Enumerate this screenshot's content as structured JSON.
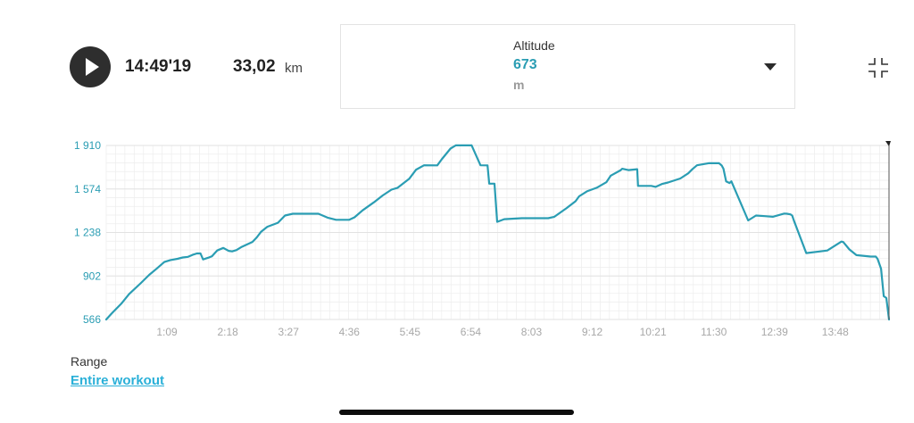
{
  "header": {
    "play_icon": "play-icon",
    "duration": "14:49'19",
    "distance": "33,02",
    "distance_unit": "km"
  },
  "metric_selector": {
    "label": "Altitude",
    "value": "673",
    "unit": "m",
    "dropdown_icon": "caret-down-icon",
    "fullscreen_icon": "collapse-icon"
  },
  "colors": {
    "line": "#2a9db3",
    "tick_text": "#2a9db3",
    "x_tick_text": "#a8a8a8",
    "grid": "#ededed",
    "link": "#2ab0d8"
  },
  "chart_data": {
    "type": "line",
    "title": "",
    "xlabel": "",
    "ylabel": "",
    "x_unit": "h:mm",
    "y_ticks": [
      "1 910",
      "1 574",
      "1 238",
      "902",
      "566"
    ],
    "y_tick_values": [
      1910,
      1574,
      1238,
      902,
      566
    ],
    "x_ticks": [
      "1:09",
      "2:18",
      "3:27",
      "4:36",
      "5:45",
      "6:54",
      "8:03",
      "9:12",
      "10:21",
      "11:30",
      "12:39",
      "13:48"
    ],
    "x_tick_values": [
      69,
      138,
      207,
      276,
      345,
      414,
      483,
      552,
      621,
      690,
      759,
      828
    ],
    "xlim": [
      0,
      889
    ],
    "ylim": [
      566,
      1910
    ],
    "grid": true,
    "series": [
      {
        "x": [
          0,
          6,
          17,
          26,
          39,
          49,
          57,
          66,
          73,
          81,
          87,
          93,
          98,
          103,
          107,
          110,
          117,
          120,
          123,
          126,
          133,
          139,
          143,
          148,
          154,
          166,
          171,
          176,
          183,
          195,
          203,
          212,
          227,
          236,
          241,
          252,
          261,
          276,
          282,
          291,
          304,
          314,
          324,
          331,
          344,
          352,
          361,
          376,
          381,
          391,
          397,
          401,
          415,
          425,
          433,
          435,
          441,
          444,
          452,
          472,
          502,
          509,
          523,
          533,
          537,
          546,
          557,
          568,
          573,
          584,
          586,
          593,
          603,
          604,
          619,
          624,
          631,
          638,
          652,
          661,
          666,
          671,
          684,
          689,
          696,
          699,
          701,
          704,
          708,
          710,
          729,
          738,
          748,
          757,
          770,
          773,
          777,
          779,
          781,
          795,
          811,
          819,
          827,
          835,
          837,
          844,
          852,
          868,
          874,
          876,
          880,
          883,
          886,
          889
        ],
        "y": [
          566,
          611,
          687,
          762,
          845,
          911,
          957,
          1010,
          1025,
          1035,
          1045,
          1050,
          1065,
          1076,
          1076,
          1030,
          1046,
          1054,
          1076,
          1099,
          1119,
          1096,
          1092,
          1102,
          1127,
          1165,
          1200,
          1244,
          1282,
          1313,
          1369,
          1383,
          1383,
          1383,
          1383,
          1351,
          1336,
          1336,
          1355,
          1408,
          1471,
          1524,
          1569,
          1583,
          1652,
          1723,
          1757,
          1756,
          1803,
          1886,
          1911,
          1911,
          1911,
          1757,
          1756,
          1615,
          1615,
          1320,
          1341,
          1348,
          1348,
          1359,
          1427,
          1479,
          1517,
          1556,
          1583,
          1626,
          1677,
          1718,
          1730,
          1720,
          1727,
          1598,
          1598,
          1590,
          1612,
          1624,
          1655,
          1695,
          1729,
          1757,
          1773,
          1773,
          1773,
          1755,
          1731,
          1633,
          1620,
          1633,
          1331,
          1369,
          1364,
          1359,
          1384,
          1383,
          1378,
          1369,
          1329,
          1079,
          1092,
          1099,
          1133,
          1168,
          1164,
          1107,
          1063,
          1052,
          1052,
          1034,
          958,
          746,
          732,
          566
        ]
      }
    ]
  },
  "range": {
    "label": "Range",
    "link": "Entire workout"
  }
}
